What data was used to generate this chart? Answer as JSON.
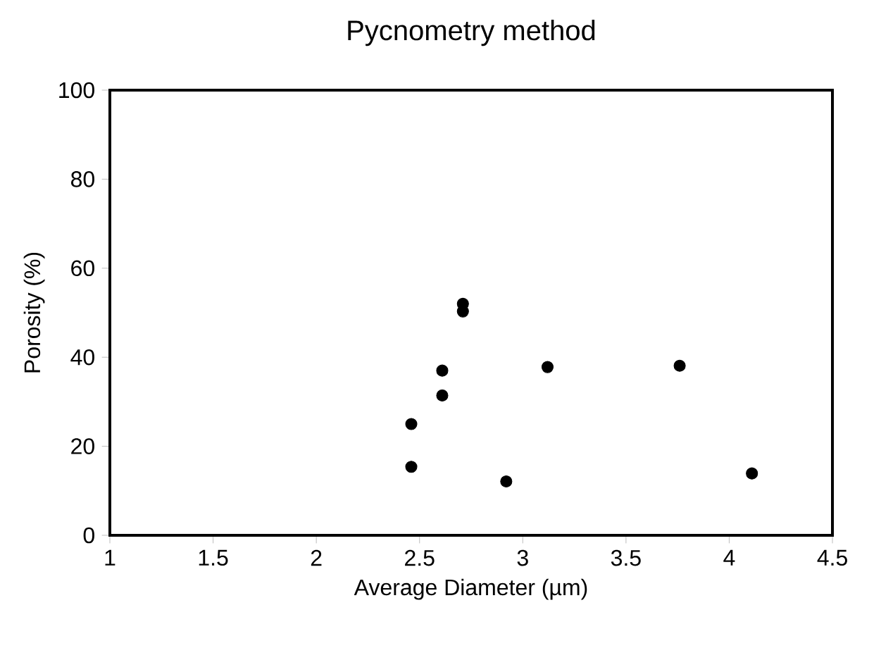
{
  "chart_data": {
    "type": "scatter",
    "title": "Pycnometry method",
    "xlabel": "Average Diameter (µm)",
    "ylabel": "Porosity (%)",
    "x": [
      2.46,
      2.46,
      2.61,
      2.61,
      2.71,
      2.71,
      2.92,
      3.12,
      3.76,
      4.11
    ],
    "values": [
      25.0,
      15.4,
      37.0,
      31.4,
      52.0,
      50.3,
      12.1,
      37.8,
      38.1,
      13.9
    ],
    "color": "#000000",
    "marker": "circle",
    "xlim": [
      1,
      4.5
    ],
    "xticks": [
      1,
      1.5,
      2,
      2.5,
      3,
      3.5,
      4,
      4.5
    ],
    "ylim": [
      0,
      100
    ],
    "yticks": [
      0,
      20,
      40,
      60,
      80,
      100
    ]
  }
}
